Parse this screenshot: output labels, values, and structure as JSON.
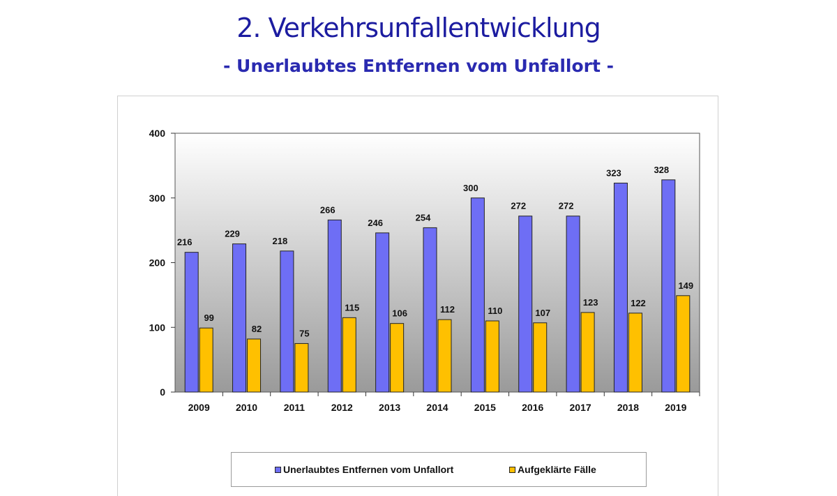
{
  "header": {
    "title": "2. Verkehrsunfallentwicklung",
    "subtitle": "- Unerlaubtes Entfernen vom Unfallort -"
  },
  "colors": {
    "series1": "#6e6ef5",
    "series2": "#ffc000",
    "title": "#1c1ca0"
  },
  "chart_data": {
    "type": "bar",
    "categories": [
      "2009",
      "2010",
      "2011",
      "2012",
      "2013",
      "2014",
      "2015",
      "2016",
      "2017",
      "2018",
      "2019"
    ],
    "series": [
      {
        "name": "Unerlaubtes Entfernen vom Unfallort",
        "values": [
          216,
          229,
          218,
          266,
          246,
          254,
          300,
          272,
          272,
          323,
          328
        ]
      },
      {
        "name": "Aufgeklärte Fälle",
        "values": [
          99,
          82,
          75,
          115,
          106,
          112,
          110,
          107,
          123,
          122,
          149
        ]
      }
    ],
    "ylim": [
      0,
      400
    ],
    "yticks": [
      "0",
      "100",
      "200",
      "300",
      "400"
    ],
    "legend": "bottom",
    "grid": false
  }
}
